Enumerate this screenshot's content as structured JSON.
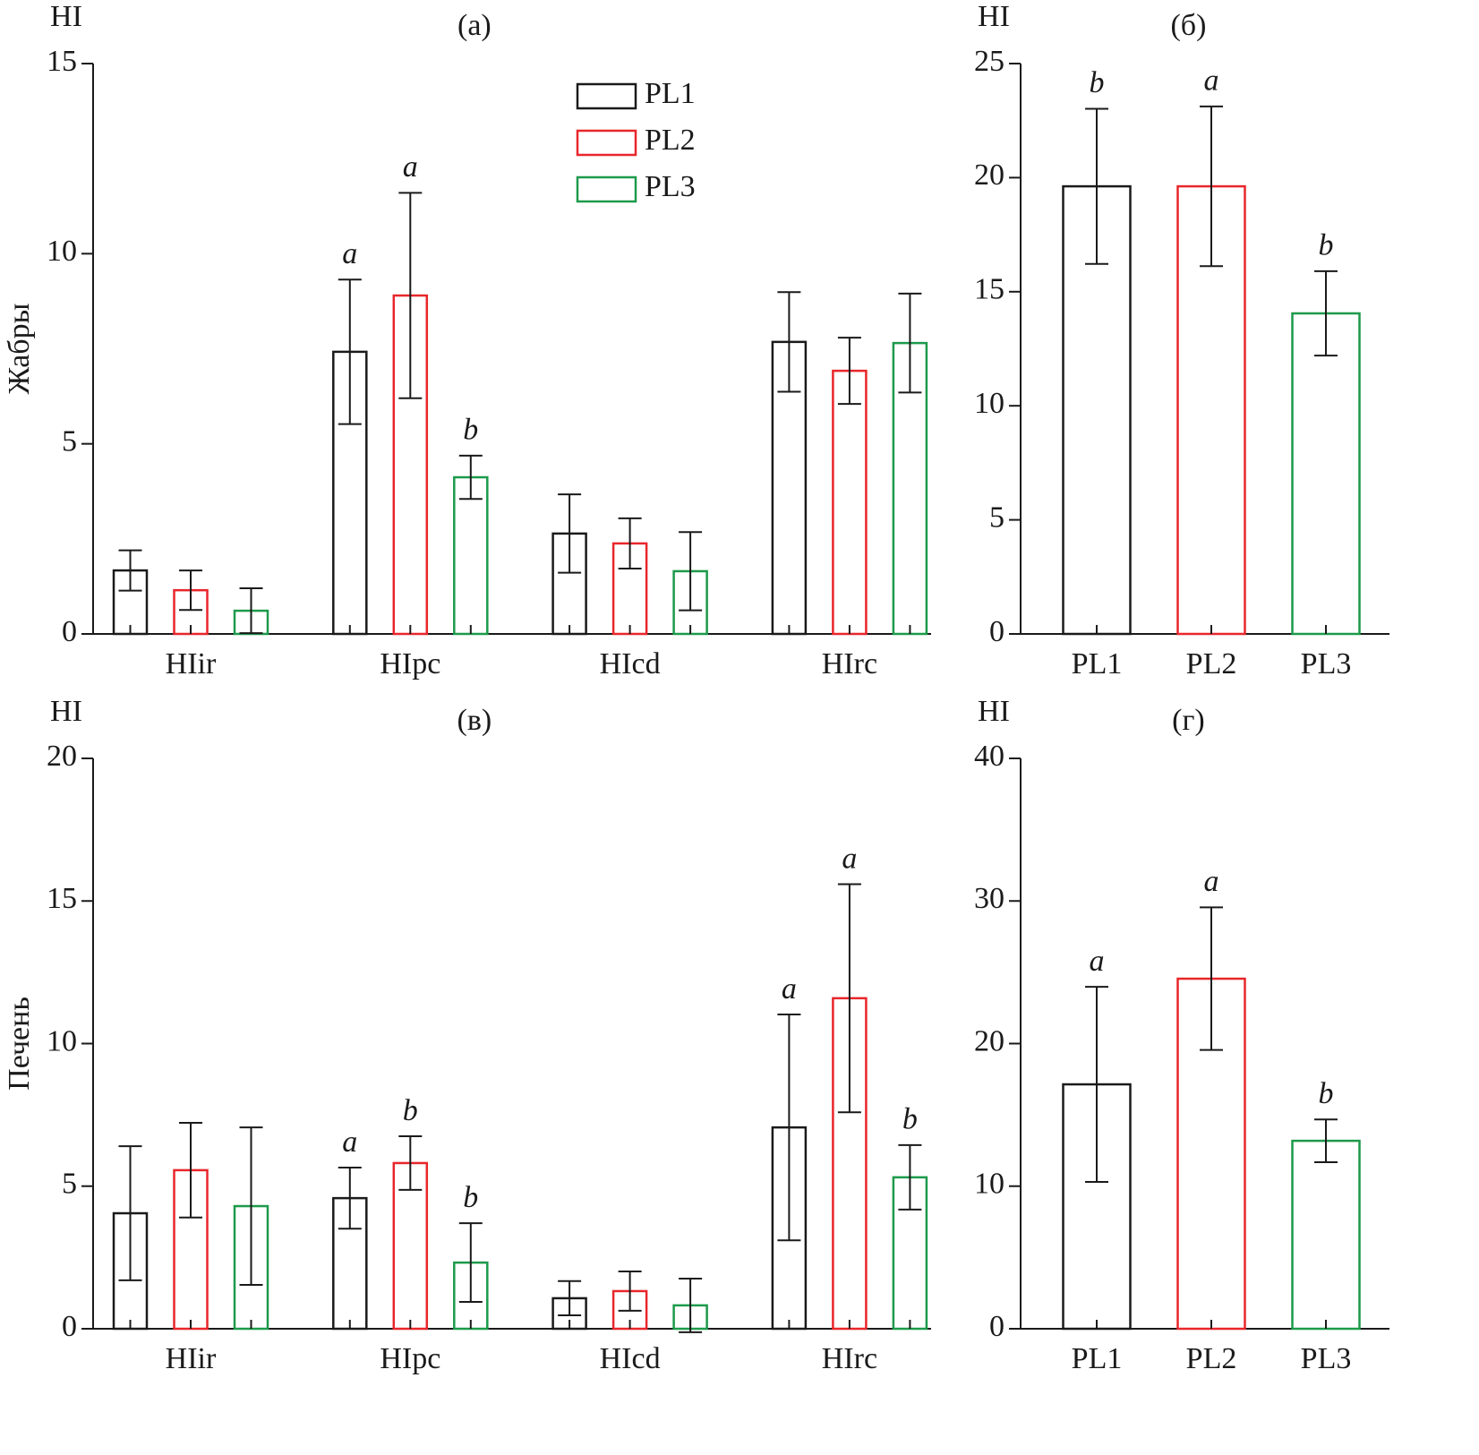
{
  "chart_data": [
    {
      "type": "grouped-bar",
      "title": "(a)",
      "ylabel": "HI",
      "row_label": "Жабры",
      "categories": [
        "HIir",
        "HIpc",
        "HIcd",
        "HIrc"
      ],
      "series": [
        {
          "name": "PL1",
          "color": "#1a1a1a",
          "values": [
            1.67,
            7.42,
            2.64,
            7.68
          ],
          "errors": [
            0.53,
            1.9,
            1.03,
            1.31
          ],
          "letters": [
            null,
            "a",
            null,
            null
          ]
        },
        {
          "name": "PL2",
          "color": "#e8262b",
          "values": [
            1.15,
            8.9,
            2.38,
            6.92
          ],
          "errors": [
            0.52,
            2.7,
            0.66,
            0.87
          ],
          "letters": [
            null,
            "a",
            null,
            null
          ]
        },
        {
          "name": "PL3",
          "color": "#1c9a4a",
          "values": [
            0.61,
            4.12,
            1.65,
            7.65
          ],
          "errors": [
            0.59,
            0.57,
            1.03,
            1.3
          ],
          "letters": [
            null,
            "b",
            null,
            null
          ]
        }
      ],
      "ylim": [
        0,
        15
      ],
      "yticks": [
        0,
        5,
        10,
        15
      ],
      "legend": "upper center"
    },
    {
      "type": "bar",
      "title": "(б)",
      "ylabel": "HI",
      "categories": [
        "PL1",
        "PL2",
        "PL3"
      ],
      "colors": [
        "#1a1a1a",
        "#e8262b",
        "#1c9a4a"
      ],
      "values": [
        19.62,
        19.62,
        14.05
      ],
      "errors": [
        3.4,
        3.5,
        1.85
      ],
      "letters": [
        "b",
        "a",
        "b"
      ],
      "ylim": [
        0,
        25
      ],
      "yticks": [
        0,
        5,
        10,
        15,
        20,
        25
      ]
    },
    {
      "type": "grouped-bar",
      "title": "(в)",
      "ylabel": "HI",
      "row_label": "Печень",
      "categories": [
        "HIir",
        "HIpc",
        "HIcd",
        "HIrc"
      ],
      "series": [
        {
          "name": "PL1",
          "color": "#1a1a1a",
          "values": [
            4.05,
            4.58,
            1.07,
            7.06
          ],
          "errors": [
            2.35,
            1.07,
            0.6,
            3.96
          ],
          "letters": [
            null,
            "a",
            null,
            "a"
          ]
        },
        {
          "name": "PL2",
          "color": "#e8262b",
          "values": [
            5.56,
            5.81,
            1.32,
            11.59
          ],
          "errors": [
            1.66,
            0.94,
            0.69,
            4.0
          ],
          "letters": [
            null,
            "b",
            null,
            "a"
          ]
        },
        {
          "name": "PL3",
          "color": "#1c9a4a",
          "values": [
            4.3,
            2.32,
            0.82,
            5.31
          ],
          "errors": [
            2.76,
            1.38,
            0.94,
            1.13
          ],
          "letters": [
            null,
            "b",
            null,
            "b"
          ]
        }
      ],
      "ylim": [
        0,
        20
      ],
      "yticks": [
        0,
        5,
        10,
        15,
        20
      ]
    },
    {
      "type": "bar",
      "title": "(г)",
      "ylabel": "HI",
      "categories": [
        "PL1",
        "PL2",
        "PL3"
      ],
      "colors": [
        "#1a1a1a",
        "#e8262b",
        "#1c9a4a"
      ],
      "values": [
        17.14,
        24.55,
        13.18
      ],
      "errors": [
        6.84,
        5.0,
        1.5
      ],
      "letters": [
        "a",
        "a",
        "b"
      ],
      "ylim": [
        0,
        40
      ],
      "yticks": [
        0,
        10,
        20,
        30,
        40
      ]
    }
  ]
}
